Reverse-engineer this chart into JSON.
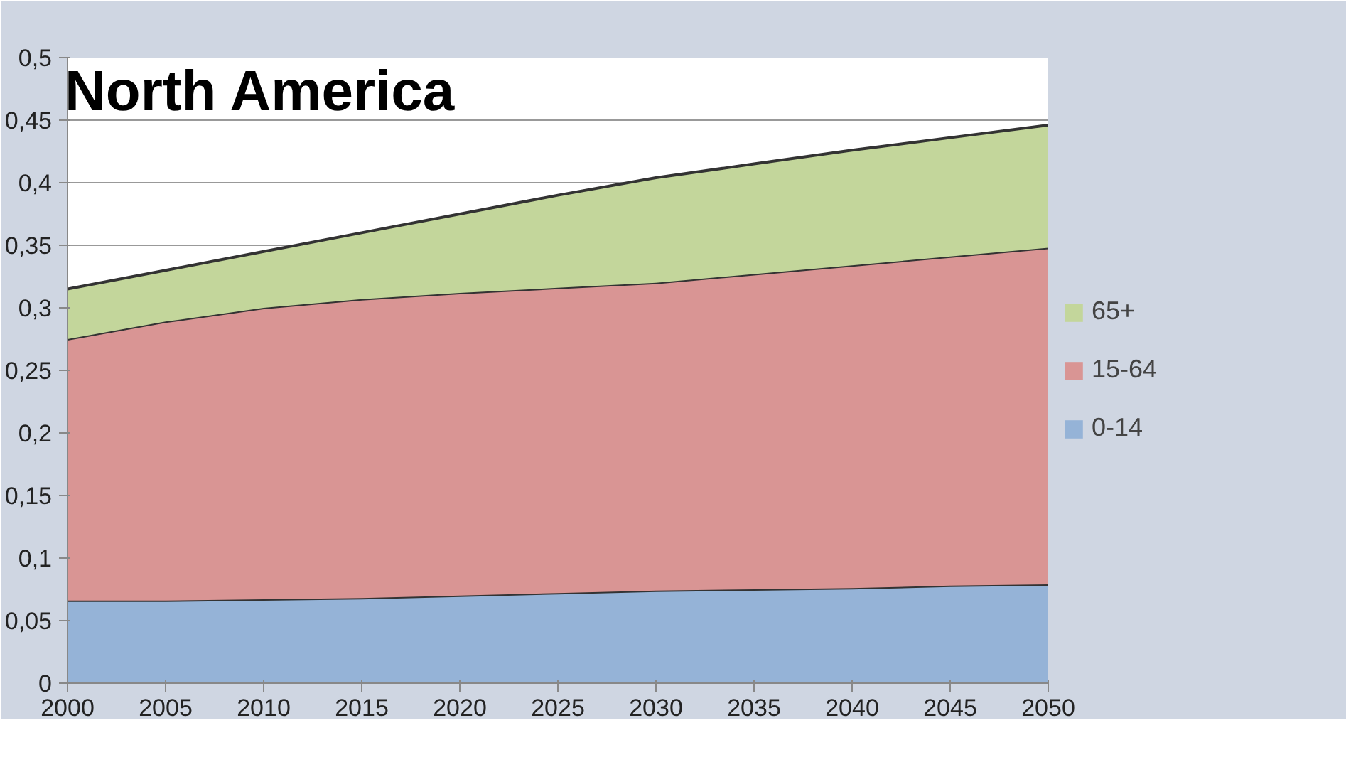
{
  "chart_data": {
    "type": "area",
    "stacked": true,
    "title": "North America",
    "x": [
      2000,
      2005,
      2010,
      2015,
      2020,
      2025,
      2030,
      2035,
      2040,
      2045,
      2050
    ],
    "series": [
      {
        "name": "0-14",
        "color": "#95b3d7",
        "values": [
          0.066,
          0.066,
          0.067,
          0.068,
          0.07,
          0.072,
          0.074,
          0.075,
          0.076,
          0.078,
          0.079
        ]
      },
      {
        "name": "15-64",
        "color": "#d99594",
        "values": [
          0.209,
          0.223,
          0.233,
          0.239,
          0.242,
          0.244,
          0.246,
          0.252,
          0.258,
          0.263,
          0.269
        ]
      },
      {
        "name": "65+",
        "color": "#c3d69b",
        "values": [
          0.04,
          0.041,
          0.045,
          0.053,
          0.063,
          0.074,
          0.084,
          0.088,
          0.092,
          0.095,
          0.098
        ]
      }
    ],
    "xlim": [
      2000,
      2050
    ],
    "xticks": [
      2000,
      2005,
      2010,
      2015,
      2020,
      2025,
      2030,
      2035,
      2040,
      2045,
      2050
    ],
    "ylim": [
      0,
      0.5
    ],
    "yticks": [
      0,
      {
        "value": 0.05,
        "label": "0,05"
      },
      {
        "value": 0.1,
        "label": "0,1"
      },
      {
        "value": 0.15,
        "label": "0,15"
      },
      {
        "value": 0.2,
        "label": "0,2"
      },
      {
        "value": 0.25,
        "label": "0,25"
      },
      {
        "value": 0.3,
        "label": "0,3"
      },
      {
        "value": 0.35,
        "label": "0,35"
      },
      {
        "value": 0.4,
        "label": "0,4"
      },
      {
        "value": 0.45,
        "label": "0,45"
      },
      {
        "value": 0.5,
        "label": "0,5"
      }
    ],
    "grid": "y",
    "legend": "right"
  }
}
